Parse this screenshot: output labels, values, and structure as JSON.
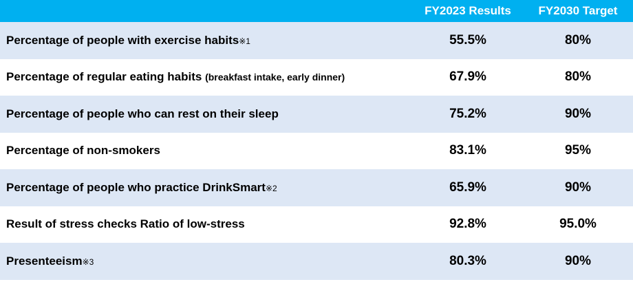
{
  "header": {
    "col_results": "FY2023 Results",
    "col_target": "FY2030 Target"
  },
  "rows": [
    {
      "label": "Percentage of people with exercise habits",
      "suffix": "",
      "note": "※1",
      "result": "55.5%",
      "target": "80%"
    },
    {
      "label": "Percentage of regular eating habits",
      "suffix": "(breakfast intake, early dinner)",
      "note": "",
      "result": "67.9%",
      "target": "80%"
    },
    {
      "label": "Percentage of people who can rest on their sleep",
      "suffix": "",
      "note": "",
      "result": "75.2%",
      "target": "90%"
    },
    {
      "label": "Percentage of non-smokers",
      "suffix": "",
      "note": "",
      "result": "83.1%",
      "target": "95%"
    },
    {
      "label": "Percentage of people who practice DrinkSmart",
      "suffix": "",
      "note": "※2",
      "result": "65.9%",
      "target": "90%"
    },
    {
      "label": "Result of stress checks Ratio of low-stress",
      "suffix": "",
      "note": "",
      "result": "92.8%",
      "target": "95.0%"
    },
    {
      "label": "Presenteeism",
      "suffix": "",
      "note": "※3",
      "result": "80.3%",
      "target": "90%"
    }
  ]
}
